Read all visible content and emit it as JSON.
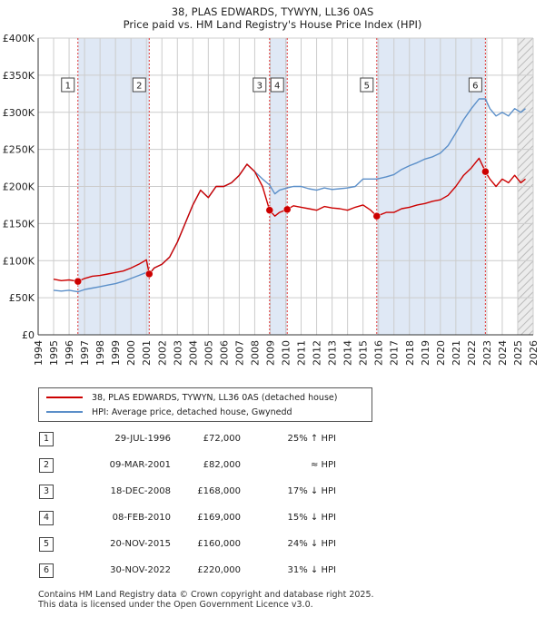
{
  "chart_data": {
    "type": "line",
    "title": "38, PLAS EDWARDS, TYWYN, LL36 0AS",
    "subtitle": "Price paid vs. HM Land Registry's House Price Index (HPI)",
    "xlabel": "",
    "ylabel": "",
    "xlim": [
      1994,
      2026
    ],
    "ylim": [
      0,
      400000
    ],
    "x_ticks": [
      1994,
      1995,
      1996,
      1997,
      1998,
      1999,
      2000,
      2001,
      2002,
      2003,
      2004,
      2005,
      2006,
      2007,
      2008,
      2009,
      2010,
      2011,
      2012,
      2013,
      2014,
      2015,
      2016,
      2017,
      2018,
      2019,
      2020,
      2021,
      2022,
      2023,
      2024,
      2025,
      2026
    ],
    "y_ticks": [
      {
        "value": 0,
        "label": "£0"
      },
      {
        "value": 50000,
        "label": "£50K"
      },
      {
        "value": 100000,
        "label": "£100K"
      },
      {
        "value": 150000,
        "label": "£150K"
      },
      {
        "value": 200000,
        "label": "£200K"
      },
      {
        "value": 250000,
        "label": "£250K"
      },
      {
        "value": 300000,
        "label": "£300K"
      },
      {
        "value": 350000,
        "label": "£350K"
      },
      {
        "value": 400000,
        "label": "£400K"
      }
    ],
    "grid": true,
    "series": [
      {
        "name": "38, PLAS EDWARDS, TYWYN, LL36 0AS (detached house)",
        "color": "#cc0000",
        "x": [
          1995.0,
          1995.5,
          1996.0,
          1996.57,
          1997.0,
          1997.5,
          1998.0,
          1998.5,
          1999.0,
          1999.5,
          2000.0,
          2000.5,
          2001.0,
          2001.18,
          2001.5,
          2002.0,
          2002.5,
          2003.0,
          2003.5,
          2004.0,
          2004.5,
          2005.0,
          2005.5,
          2006.0,
          2006.5,
          2007.0,
          2007.5,
          2008.0,
          2008.5,
          2008.96,
          2009.3,
          2009.6,
          2010.1,
          2010.5,
          2011.0,
          2011.5,
          2012.0,
          2012.5,
          2013.0,
          2013.5,
          2014.0,
          2014.5,
          2015.0,
          2015.5,
          2015.89,
          2016.5,
          2017.0,
          2017.5,
          2018.0,
          2018.5,
          2019.0,
          2019.5,
          2020.0,
          2020.5,
          2021.0,
          2021.5,
          2022.0,
          2022.5,
          2022.91,
          2023.2,
          2023.6,
          2024.0,
          2024.4,
          2024.8,
          2025.2,
          2025.5
        ],
        "y": [
          75000,
          73000,
          74000,
          72000,
          76000,
          79000,
          80000,
          82000,
          84000,
          86000,
          90000,
          95000,
          101000,
          82000,
          90000,
          95000,
          105000,
          125000,
          150000,
          175000,
          195000,
          185000,
          200000,
          200000,
          205000,
          215000,
          230000,
          220000,
          200000,
          168000,
          160000,
          165000,
          169000,
          174000,
          172000,
          170000,
          168000,
          173000,
          171000,
          170000,
          168000,
          172000,
          175000,
          168000,
          160000,
          165000,
          165000,
          170000,
          172000,
          175000,
          177000,
          180000,
          182000,
          188000,
          200000,
          215000,
          225000,
          238000,
          220000,
          210000,
          200000,
          210000,
          205000,
          215000,
          205000,
          210000
        ]
      },
      {
        "name": "HPI: Average price, detached house, Gwynedd",
        "color": "#5b8fc9",
        "x": [
          1995.0,
          1995.5,
          1996.0,
          1996.57,
          1997.0,
          1997.5,
          1998.0,
          1998.5,
          1999.0,
          1999.5,
          2000.0,
          2000.5,
          2001.0,
          2001.18,
          2001.5,
          2002.0,
          2002.5,
          2003.0,
          2003.5,
          2004.0,
          2004.5,
          2005.0,
          2005.5,
          2006.0,
          2006.5,
          2007.0,
          2007.5,
          2008.0,
          2008.5,
          2008.96,
          2009.3,
          2009.6,
          2010.1,
          2010.5,
          2011.0,
          2011.5,
          2012.0,
          2012.5,
          2013.0,
          2013.5,
          2014.0,
          2014.5,
          2015.0,
          2015.5,
          2015.89,
          2016.5,
          2017.0,
          2017.5,
          2018.0,
          2018.5,
          2019.0,
          2019.5,
          2020.0,
          2020.5,
          2021.0,
          2021.5,
          2022.0,
          2022.5,
          2022.91,
          2023.2,
          2023.6,
          2024.0,
          2024.4,
          2024.8,
          2025.2,
          2025.5
        ],
        "y": [
          60000,
          59000,
          60000,
          58000,
          61000,
          63000,
          65000,
          67000,
          69000,
          72000,
          76000,
          80000,
          84000,
          82000,
          90000,
          95000,
          105000,
          125000,
          150000,
          175000,
          195000,
          185000,
          200000,
          200000,
          205000,
          215000,
          230000,
          220000,
          210000,
          202000,
          190000,
          195000,
          198000,
          200000,
          200000,
          197000,
          195000,
          198000,
          196000,
          197000,
          198000,
          200000,
          210000,
          210000,
          210000,
          213000,
          216000,
          223000,
          228000,
          232000,
          237000,
          240000,
          245000,
          255000,
          272000,
          290000,
          305000,
          318000,
          318000,
          305000,
          295000,
          300000,
          295000,
          305000,
          300000,
          305000
        ]
      }
    ],
    "sales": [
      {
        "label": "1",
        "x": 1996.57,
        "price": 72000
      },
      {
        "label": "2",
        "x": 2001.18,
        "price": 82000
      },
      {
        "label": "3",
        "x": 2008.96,
        "price": 168000
      },
      {
        "label": "4",
        "x": 2010.1,
        "price": 169000
      },
      {
        "label": "5",
        "x": 2015.89,
        "price": 160000
      },
      {
        "label": "6",
        "x": 2022.91,
        "price": 220000
      }
    ],
    "highlight_spans": [
      [
        1996.57,
        2001.18
      ],
      [
        2008.96,
        2010.1
      ],
      [
        2015.89,
        2022.91
      ]
    ],
    "data_end": 2025.0
  },
  "legend": {
    "property_label": "38, PLAS EDWARDS, TYWYN, LL36 0AS (detached house)",
    "hpi_label": "HPI: Average price, detached house, Gwynedd",
    "property_color": "#cc0000",
    "hpi_color": "#5b8fc9"
  },
  "sales_table": [
    {
      "num": "1",
      "date": "29-JUL-1996",
      "price": "£72,000",
      "hpi": "25% ↑ HPI"
    },
    {
      "num": "2",
      "date": "09-MAR-2001",
      "price": "£82,000",
      "hpi": "≈ HPI"
    },
    {
      "num": "3",
      "date": "18-DEC-2008",
      "price": "£168,000",
      "hpi": "17% ↓ HPI"
    },
    {
      "num": "4",
      "date": "08-FEB-2010",
      "price": "£169,000",
      "hpi": "15% ↓ HPI"
    },
    {
      "num": "5",
      "date": "20-NOV-2015",
      "price": "£160,000",
      "hpi": "24% ↓ HPI"
    },
    {
      "num": "6",
      "date": "30-NOV-2022",
      "price": "£220,000",
      "hpi": "31% ↓ HPI"
    }
  ],
  "footer": {
    "line1": "Contains HM Land Registry data © Crown copyright and database right 2025.",
    "line2": "This data is licensed under the Open Government Licence v3.0."
  }
}
